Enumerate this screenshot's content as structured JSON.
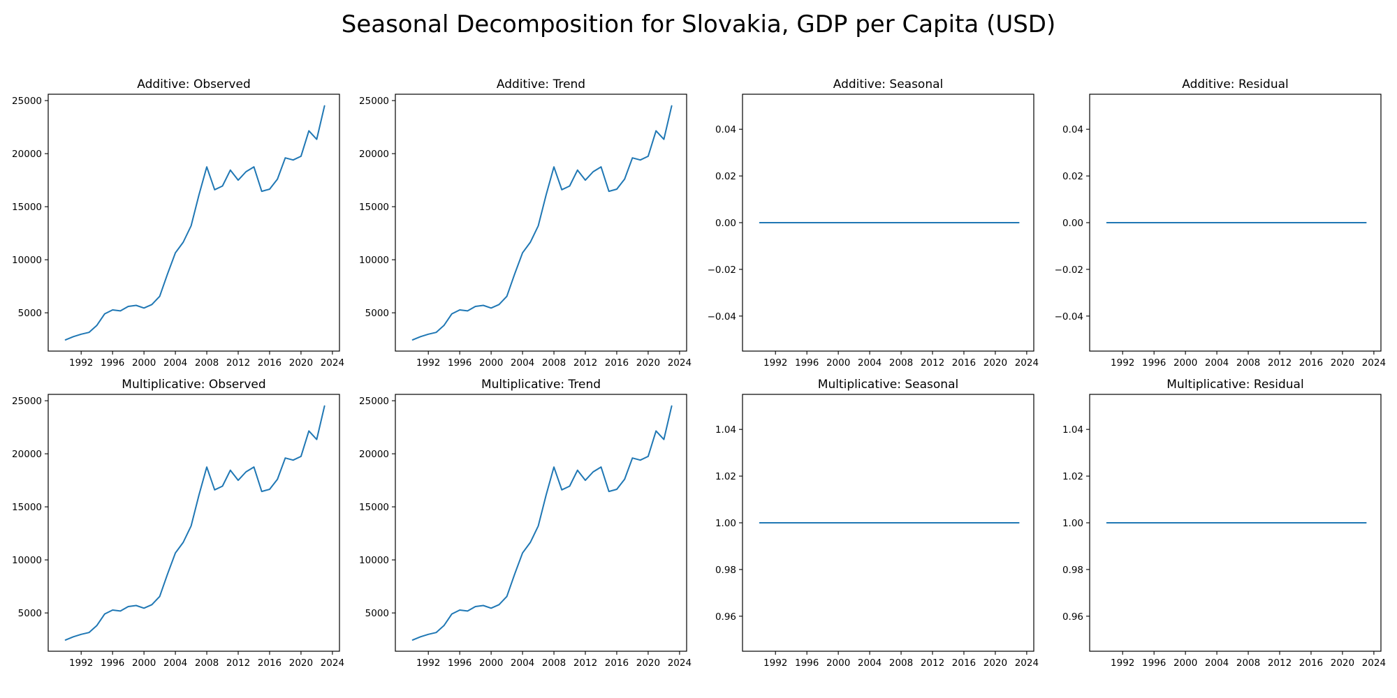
{
  "title": "Seasonal Decomposition for Slovakia, GDP per Capita (USD)",
  "colors": {
    "line": "#1f77b4",
    "axes": "#000000"
  },
  "chart_data": [
    {
      "type": "line",
      "title": "Additive: Observed",
      "x": [
        1990,
        1991,
        1992,
        1993,
        1994,
        1995,
        1996,
        1997,
        1998,
        1999,
        2000,
        2001,
        2002,
        2003,
        2004,
        2005,
        2006,
        2007,
        2008,
        2009,
        2010,
        2011,
        2012,
        2013,
        2014,
        2015,
        2016,
        2017,
        2018,
        2019,
        2020,
        2021,
        2022,
        2023
      ],
      "y": [
        2450,
        2750,
        2980,
        3150,
        3820,
        4900,
        5270,
        5180,
        5600,
        5700,
        5450,
        5780,
        6550,
        8650,
        10650,
        11650,
        13200,
        16100,
        18750,
        16600,
        16950,
        18450,
        17500,
        18300,
        18750,
        16450,
        16650,
        17600,
        19600,
        19400,
        19750,
        22150,
        21350,
        24500
      ],
      "xlim": [
        1987.8,
        2024.9
      ],
      "ylim": [
        1390,
        25600
      ],
      "xticks": [
        1992,
        1996,
        2000,
        2004,
        2008,
        2012,
        2016,
        2020,
        2024
      ],
      "yticks": [
        5000,
        10000,
        15000,
        20000,
        25000
      ],
      "ytick_labels": [
        "5000",
        "10000",
        "15000",
        "20000",
        "25000"
      ]
    },
    {
      "type": "line",
      "title": "Additive: Trend",
      "x": [
        1990,
        1991,
        1992,
        1993,
        1994,
        1995,
        1996,
        1997,
        1998,
        1999,
        2000,
        2001,
        2002,
        2003,
        2004,
        2005,
        2006,
        2007,
        2008,
        2009,
        2010,
        2011,
        2012,
        2013,
        2014,
        2015,
        2016,
        2017,
        2018,
        2019,
        2020,
        2021,
        2022,
        2023
      ],
      "y": [
        2450,
        2750,
        2980,
        3150,
        3820,
        4900,
        5270,
        5180,
        5600,
        5700,
        5450,
        5780,
        6550,
        8650,
        10650,
        11650,
        13200,
        16100,
        18750,
        16600,
        16950,
        18450,
        17500,
        18300,
        18750,
        16450,
        16650,
        17600,
        19600,
        19400,
        19750,
        22150,
        21350,
        24500
      ],
      "xlim": [
        1987.8,
        2024.9
      ],
      "ylim": [
        1390,
        25600
      ],
      "xticks": [
        1992,
        1996,
        2000,
        2004,
        2008,
        2012,
        2016,
        2020,
        2024
      ],
      "yticks": [
        5000,
        10000,
        15000,
        20000,
        25000
      ],
      "ytick_labels": [
        "5000",
        "10000",
        "15000",
        "20000",
        "25000"
      ]
    },
    {
      "type": "line",
      "title": "Additive: Seasonal",
      "x": [
        1990,
        2023
      ],
      "y": [
        0,
        0
      ],
      "xlim": [
        1987.8,
        2024.9
      ],
      "ylim": [
        -0.055,
        0.055
      ],
      "xticks": [
        1992,
        1996,
        2000,
        2004,
        2008,
        2012,
        2016,
        2020,
        2024
      ],
      "yticks": [
        -0.04,
        -0.02,
        0,
        0.02,
        0.04
      ],
      "ytick_labels": [
        "−0.04",
        "−0.02",
        "0.00",
        "0.02",
        "0.04"
      ]
    },
    {
      "type": "line",
      "title": "Additive: Residual",
      "x": [
        1990,
        2023
      ],
      "y": [
        0,
        0
      ],
      "xlim": [
        1987.8,
        2024.9
      ],
      "ylim": [
        -0.055,
        0.055
      ],
      "xticks": [
        1992,
        1996,
        2000,
        2004,
        2008,
        2012,
        2016,
        2020,
        2024
      ],
      "yticks": [
        -0.04,
        -0.02,
        0,
        0.02,
        0.04
      ],
      "ytick_labels": [
        "−0.04",
        "−0.02",
        "0.00",
        "0.02",
        "0.04"
      ]
    },
    {
      "type": "line",
      "title": "Multiplicative: Observed",
      "x": [
        1990,
        1991,
        1992,
        1993,
        1994,
        1995,
        1996,
        1997,
        1998,
        1999,
        2000,
        2001,
        2002,
        2003,
        2004,
        2005,
        2006,
        2007,
        2008,
        2009,
        2010,
        2011,
        2012,
        2013,
        2014,
        2015,
        2016,
        2017,
        2018,
        2019,
        2020,
        2021,
        2022,
        2023
      ],
      "y": [
        2450,
        2750,
        2980,
        3150,
        3820,
        4900,
        5270,
        5180,
        5600,
        5700,
        5450,
        5780,
        6550,
        8650,
        10650,
        11650,
        13200,
        16100,
        18750,
        16600,
        16950,
        18450,
        17500,
        18300,
        18750,
        16450,
        16650,
        17600,
        19600,
        19400,
        19750,
        22150,
        21350,
        24500
      ],
      "xlim": [
        1987.8,
        2024.9
      ],
      "ylim": [
        1390,
        25600
      ],
      "xticks": [
        1992,
        1996,
        2000,
        2004,
        2008,
        2012,
        2016,
        2020,
        2024
      ],
      "yticks": [
        5000,
        10000,
        15000,
        20000,
        25000
      ],
      "ytick_labels": [
        "5000",
        "10000",
        "15000",
        "20000",
        "25000"
      ]
    },
    {
      "type": "line",
      "title": "Multiplicative: Trend",
      "x": [
        1990,
        1991,
        1992,
        1993,
        1994,
        1995,
        1996,
        1997,
        1998,
        1999,
        2000,
        2001,
        2002,
        2003,
        2004,
        2005,
        2006,
        2007,
        2008,
        2009,
        2010,
        2011,
        2012,
        2013,
        2014,
        2015,
        2016,
        2017,
        2018,
        2019,
        2020,
        2021,
        2022,
        2023
      ],
      "y": [
        2450,
        2750,
        2980,
        3150,
        3820,
        4900,
        5270,
        5180,
        5600,
        5700,
        5450,
        5780,
        6550,
        8650,
        10650,
        11650,
        13200,
        16100,
        18750,
        16600,
        16950,
        18450,
        17500,
        18300,
        18750,
        16450,
        16650,
        17600,
        19600,
        19400,
        19750,
        22150,
        21350,
        24500
      ],
      "xlim": [
        1987.8,
        2024.9
      ],
      "ylim": [
        1390,
        25600
      ],
      "xticks": [
        1992,
        1996,
        2000,
        2004,
        2008,
        2012,
        2016,
        2020,
        2024
      ],
      "yticks": [
        5000,
        10000,
        15000,
        20000,
        25000
      ],
      "ytick_labels": [
        "5000",
        "10000",
        "15000",
        "20000",
        "25000"
      ]
    },
    {
      "type": "line",
      "title": "Multiplicative: Seasonal",
      "x": [
        1990,
        2023
      ],
      "y": [
        1,
        1
      ],
      "xlim": [
        1987.8,
        2024.9
      ],
      "ylim": [
        0.945,
        1.055
      ],
      "xticks": [
        1992,
        1996,
        2000,
        2004,
        2008,
        2012,
        2016,
        2020,
        2024
      ],
      "yticks": [
        0.96,
        0.98,
        1.0,
        1.02,
        1.04
      ],
      "ytick_labels": [
        "0.96",
        "0.98",
        "1.00",
        "1.02",
        "1.04"
      ]
    },
    {
      "type": "line",
      "title": "Multiplicative: Residual",
      "x": [
        1990,
        2023
      ],
      "y": [
        1,
        1
      ],
      "xlim": [
        1987.8,
        2024.9
      ],
      "ylim": [
        0.945,
        1.055
      ],
      "xticks": [
        1992,
        1996,
        2000,
        2004,
        2008,
        2012,
        2016,
        2020,
        2024
      ],
      "yticks": [
        0.96,
        0.98,
        1.0,
        1.02,
        1.04
      ],
      "ytick_labels": [
        "0.96",
        "0.98",
        "1.00",
        "1.02",
        "1.04"
      ]
    }
  ]
}
